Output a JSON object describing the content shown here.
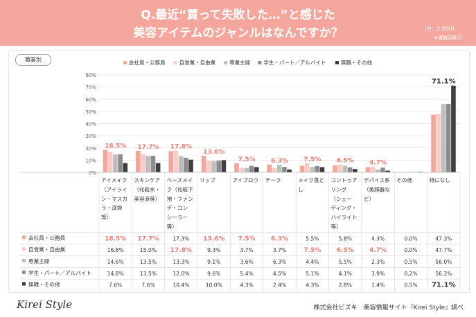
{
  "header": {
    "title_line1": "Q.最近“買って失敗した…”と感じた",
    "title_line2": "美容アイテムのジャンルはなんですか？",
    "n_label": "（N：2,000）",
    "note": "※複数回答可"
  },
  "segment_label": "職業別",
  "footer": {
    "logo": "Kirei Style",
    "credit": "株式会社ビズキ　美容情報サイト『Kirei Style』調べ"
  },
  "colors": {
    "header": "#f4a59c",
    "highlight": "#ee7e72",
    "series": [
      "#f4a59c",
      "#f9cdc6",
      "#bdbdbd",
      "#8c8c8c",
      "#3f3f3f"
    ]
  },
  "chart_data": {
    "type": "bar",
    "title": "Q.最近“買って失敗した…”と感じた美容アイテムのジャンルはなんですか？",
    "ylim": [
      0,
      80
    ],
    "yticks": [
      "0%",
      "10%",
      "20%",
      "30%",
      "40%",
      "50%",
      "60%",
      "70%",
      "80%"
    ],
    "legend_position": "top",
    "categories": [
      [
        "アイメイク",
        "（アイライ",
        "ン・マスカ",
        "ラ・涙袋",
        "等）"
      ],
      [
        "スキンケア",
        "（化粧水・",
        "美容液等）"
      ],
      [
        "ベースメイ",
        "ク（化粧下",
        "地・ファン",
        "デ・コン",
        "シーラー",
        "等）"
      ],
      [
        "リップ"
      ],
      [
        "アイブロウ"
      ],
      [
        "チーク"
      ],
      [
        "メイク落と",
        "し"
      ],
      [
        "コントゥア",
        "リング",
        "（シェー",
        "ディング・",
        "ハイライト",
        "等）"
      ],
      [
        "デバイス系",
        "（美顔器な",
        "ど）"
      ],
      [
        "その他"
      ],
      [
        "特になし"
      ]
    ],
    "series": [
      {
        "name": "会社員・公務員",
        "values": [
          18.5,
          17.7,
          17.3,
          13.6,
          7.5,
          6.3,
          5.5,
          5.8,
          4.3,
          0.0,
          47.3
        ]
      },
      {
        "name": "自営業・自由業",
        "values": [
          16.8,
          15.0,
          17.8,
          9.3,
          3.7,
          3.7,
          7.5,
          6.5,
          4.7,
          0.0,
          47.7
        ]
      },
      {
        "name": "専業主婦",
        "values": [
          14.6,
          13.5,
          13.3,
          9.1,
          3.6,
          6.3,
          4.4,
          5.5,
          2.3,
          0.5,
          56.0
        ]
      },
      {
        "name": "学生・パート／アルバイト",
        "values": [
          14.8,
          13.5,
          12.0,
          9.6,
          5.4,
          4.5,
          5.1,
          4.1,
          3.9,
          0.2,
          56.2
        ]
      },
      {
        "name": "無職・その他",
        "values": [
          7.6,
          7.6,
          10.4,
          10.0,
          4.3,
          2.4,
          4.3,
          2.8,
          1.4,
          0.5,
          71.1
        ]
      }
    ],
    "bar_labels": [
      {
        "cat": 0,
        "text": "18.5%"
      },
      {
        "cat": 1,
        "text": "17.7%"
      },
      {
        "cat": 2,
        "text": "17.8%"
      },
      {
        "cat": 3,
        "text": "13.6%"
      },
      {
        "cat": 4,
        "text": "7.5%"
      },
      {
        "cat": 5,
        "text": "6.3%"
      },
      {
        "cat": 6,
        "text": "7.5%"
      },
      {
        "cat": 7,
        "text": "6.5%"
      },
      {
        "cat": 8,
        "text": "4.7%"
      },
      {
        "cat": 10,
        "text": "71.1%"
      }
    ],
    "table": [
      [
        "18.5%",
        "17.7%",
        "17.3%",
        "13.6%",
        "7.5%",
        "6.3%",
        "5.5%",
        "5.8%",
        "4.3%",
        "0.0%",
        "47.3%"
      ],
      [
        "16.8%",
        "15.0%",
        "17.8%",
        "9.3%",
        "3.7%",
        "3.7%",
        "7.5%",
        "6.5%",
        "4.7%",
        "0.0%",
        "47.7%"
      ],
      [
        "14.6%",
        "13.5%",
        "13.3%",
        "9.1%",
        "3.6%",
        "6.3%",
        "4.4%",
        "5.5%",
        "2.3%",
        "0.5%",
        "56.0%"
      ],
      [
        "14.8%",
        "13.5%",
        "12.0%",
        "9.6%",
        "5.4%",
        "4.5%",
        "5.1%",
        "4.1%",
        "3.9%",
        "0.2%",
        "56.2%"
      ],
      [
        "7.6%",
        "7.6%",
        "10.4%",
        "10.0%",
        "4.3%",
        "2.4%",
        "4.3%",
        "2.8%",
        "1.4%",
        "0.5%",
        "71.1%"
      ]
    ],
    "highlight_cells": [
      [
        0,
        0
      ],
      [
        0,
        1
      ],
      [
        0,
        3
      ],
      [
        0,
        4
      ],
      [
        0,
        5
      ],
      [
        1,
        2
      ],
      [
        1,
        6
      ],
      [
        1,
        7
      ],
      [
        1,
        8
      ],
      [
        4,
        10
      ]
    ]
  }
}
